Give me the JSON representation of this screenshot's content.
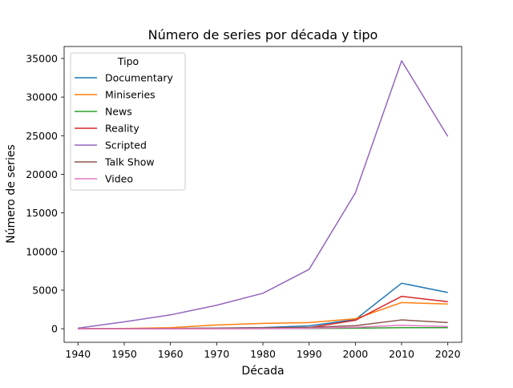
{
  "chart_data": {
    "type": "line",
    "title": "Número de series por década y tipo",
    "xlabel": "Década",
    "ylabel": "Número de series",
    "x": [
      1940,
      1950,
      1960,
      1970,
      1980,
      1990,
      2000,
      2010,
      2020
    ],
    "xticks": [
      1940,
      1950,
      1960,
      1970,
      1980,
      1990,
      2000,
      2010,
      2020
    ],
    "yticks": [
      0,
      5000,
      10000,
      15000,
      20000,
      25000,
      30000,
      35000
    ],
    "xlim": [
      1937,
      2023
    ],
    "ylim": [
      -1750,
      36550
    ],
    "grid": false,
    "legend": {
      "title": "Tipo",
      "position": "top-left"
    },
    "series": [
      {
        "name": "Documentary",
        "color": "#1f77b4",
        "values": [
          5,
          15,
          40,
          90,
          160,
          380,
          1200,
          5900,
          4700
        ]
      },
      {
        "name": "Miniseries",
        "color": "#ff7f0e",
        "values": [
          10,
          40,
          150,
          500,
          700,
          800,
          1300,
          3400,
          3200
        ]
      },
      {
        "name": "News",
        "color": "#2ca02c",
        "values": [
          2,
          5,
          10,
          20,
          30,
          40,
          80,
          150,
          150
        ]
      },
      {
        "name": "Reality",
        "color": "#d62728",
        "values": [
          2,
          5,
          15,
          40,
          80,
          150,
          1100,
          4200,
          3500
        ]
      },
      {
        "name": "Scripted",
        "color": "#9467bd",
        "values": [
          80,
          900,
          1800,
          3050,
          4600,
          7700,
          17600,
          34700,
          24900
        ]
      },
      {
        "name": "Talk Show",
        "color": "#8c564b",
        "values": [
          5,
          20,
          40,
          80,
          120,
          180,
          400,
          1150,
          800
        ]
      },
      {
        "name": "Video",
        "color": "#e377c2",
        "values": [
          1,
          3,
          8,
          15,
          30,
          60,
          200,
          450,
          300
        ]
      }
    ]
  }
}
